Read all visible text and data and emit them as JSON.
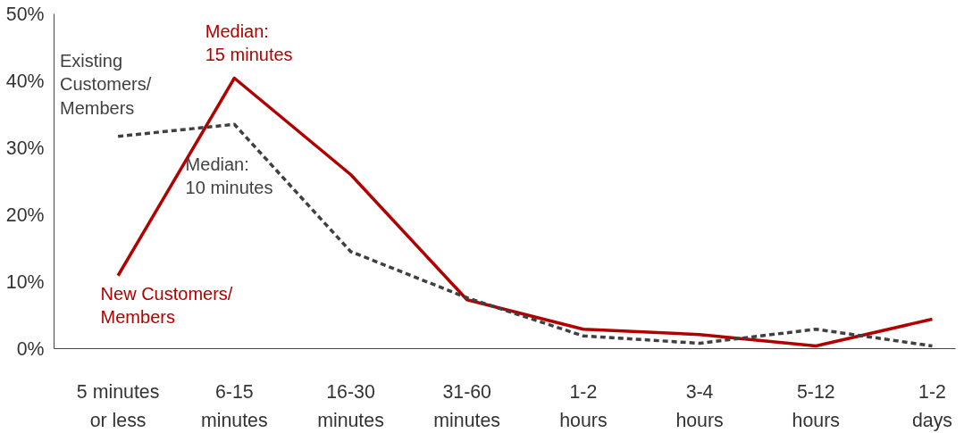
{
  "chart_data": {
    "type": "line",
    "categories": [
      "5 minutes\nor less",
      "6-15\nminutes",
      "16-30\nminutes",
      "31-60\nminutes",
      "1-2\nhours",
      "3-4\nhours",
      "5-12\nhours",
      "1-2\ndays"
    ],
    "series": [
      {
        "name": "New Customers/\nMembers",
        "color": "#b00000",
        "line_style": "solid",
        "values": [
          10.9,
          40.4,
          26,
          7.3,
          2.9,
          2.1,
          0.4,
          4.4
        ]
      },
      {
        "name": "Existing\nCustomers/\nMembers",
        "color": "#404040",
        "line_style": "dashed",
        "values": [
          31.7,
          33.5,
          14.5,
          7.6,
          1.9,
          0.8,
          2.9,
          0.4
        ]
      }
    ],
    "ylim": [
      0,
      50
    ],
    "yticks": [
      {
        "value": 0,
        "label": "0%"
      },
      {
        "value": 10,
        "label": "10%"
      },
      {
        "value": 20,
        "label": "20%"
      },
      {
        "value": 30,
        "label": "30%"
      },
      {
        "value": 40,
        "label": "40%"
      },
      {
        "value": 50,
        "label": "50%"
      }
    ],
    "annotations": [
      {
        "text": "Median:\n15 minutes",
        "x": "6-15\nminutes",
        "y": 40.4
      },
      {
        "text": "Median:\n10 minutes",
        "x": "6-15\nminutes",
        "y": 33.5
      }
    ],
    "grid": false,
    "marker": "none"
  }
}
